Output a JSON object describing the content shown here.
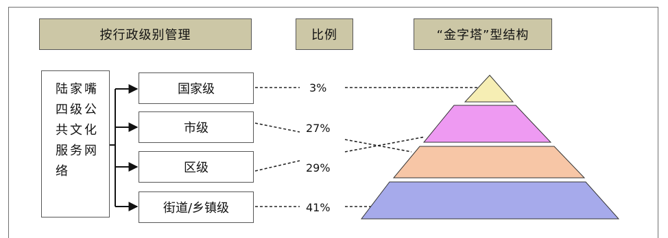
{
  "headers": {
    "by_admin_level": "按行政级别管理",
    "ratio": "比例",
    "pyramid": "“金字塔”型结构"
  },
  "network": {
    "label": "陆家嘴四级公共文化服务网络"
  },
  "levels": [
    {
      "name": "国家级",
      "percent": "3%",
      "color": "#f6eeb4"
    },
    {
      "name": "市级",
      "percent": "27%",
      "color": "#ee9af2"
    },
    {
      "name": "区级",
      "percent": "29%",
      "color": "#f7c6a6"
    },
    {
      "name": "街道/乡镇级",
      "percent": "41%",
      "color": "#a6aaeb"
    }
  ]
}
